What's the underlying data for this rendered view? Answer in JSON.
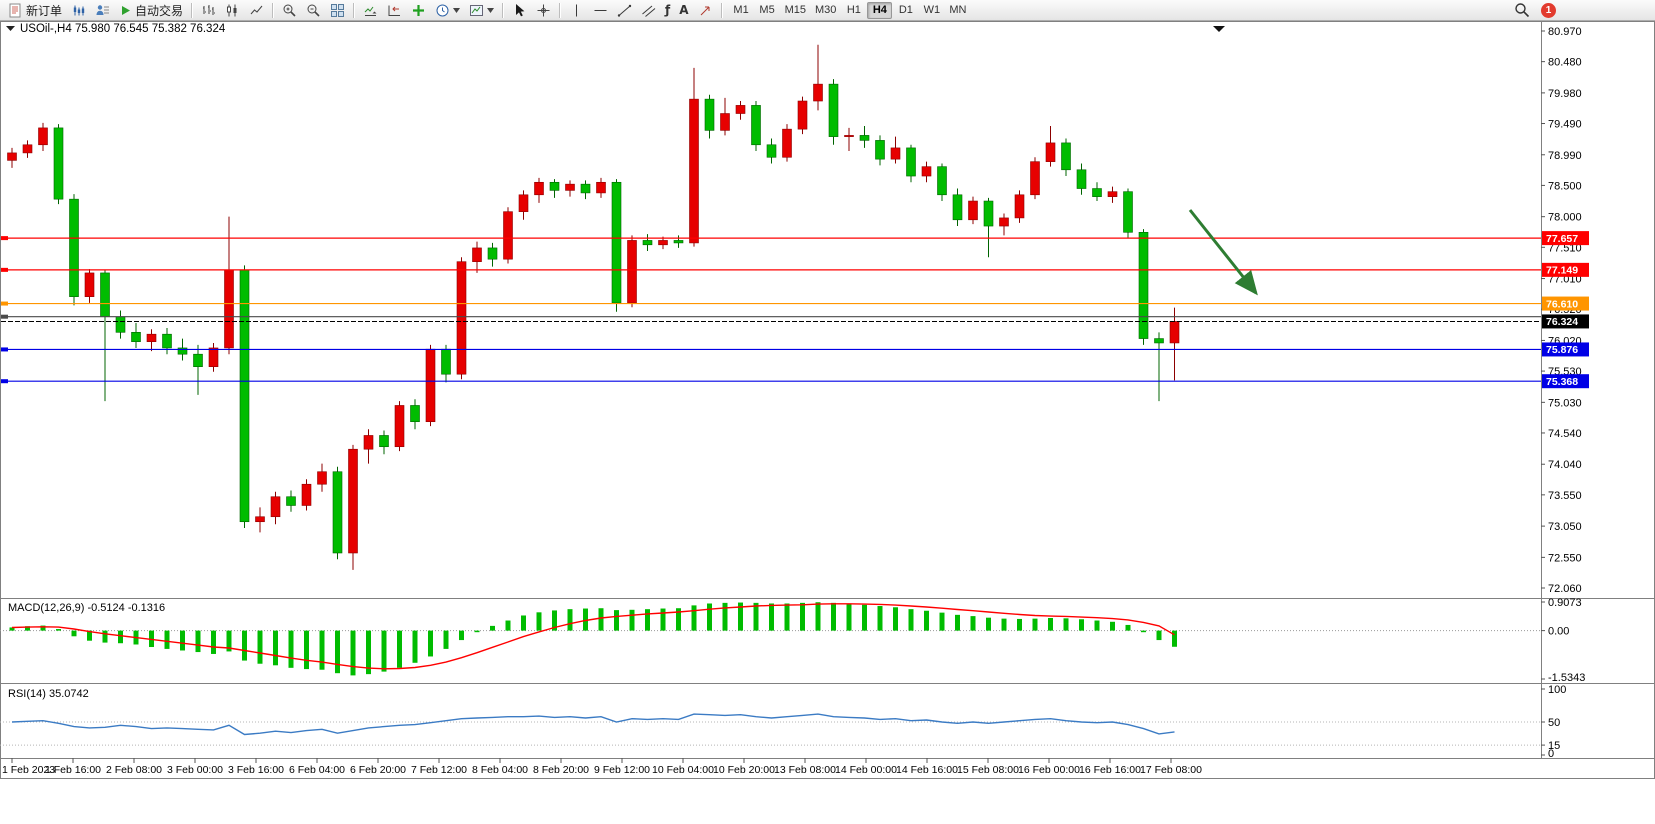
{
  "toolbar": {
    "new_order_label": "新订单",
    "auto_trading_label": "自动交易",
    "fibo_tool_glyph": "ƒ",
    "text_tool_glyph": "A",
    "timeframes": [
      "M1",
      "M5",
      "M15",
      "M30",
      "H1",
      "H4",
      "D1",
      "W1",
      "MN"
    ],
    "active_timeframe": "H4",
    "notification_count": "1"
  },
  "chart": {
    "symbol_period": "USOil-,H4",
    "ohlc": "75.980 76.545 75.382 76.324",
    "price_max": 80.97,
    "price_min": 72.06,
    "price_axis": [
      "80.970",
      "80.480",
      "79.980",
      "79.490",
      "78.990",
      "78.500",
      "78.000",
      "77.510",
      "77.010",
      "76.520",
      "76.020",
      "75.530",
      "75.030",
      "74.540",
      "74.040",
      "73.550",
      "73.050",
      "72.550",
      "72.060"
    ],
    "hlines": [
      {
        "price": 77.657,
        "color": "#ff0000",
        "tag": "77.657"
      },
      {
        "price": 77.149,
        "color": "#ff0000",
        "tag": "77.149"
      },
      {
        "price": 76.61,
        "color": "#ff9500",
        "tag": "76.610"
      },
      {
        "price": 76.4,
        "color": "#4a4a4a",
        "tag": ""
      },
      {
        "price": 75.876,
        "color": "#0000e6",
        "tag": "75.876"
      },
      {
        "price": 75.368,
        "color": "#0000e6",
        "tag": "75.368"
      }
    ],
    "price_line": {
      "price": 76.324,
      "color": "#000000",
      "tag": "76.324"
    },
    "arrow": {
      "color": "#2e7d32"
    },
    "time_axis": [
      "1 Feb 2023",
      "1 Feb 16:00",
      "2 Feb 08:00",
      "3 Feb 00:00",
      "3 Feb 16:00",
      "6 Feb 04:00",
      "6 Feb 20:00",
      "7 Feb 12:00",
      "8 Feb 04:00",
      "8 Feb 20:00",
      "9 Feb 12:00",
      "10 Feb 04:00",
      "10 Feb 20:00",
      "13 Feb 08:00",
      "14 Feb 00:00",
      "14 Feb 16:00",
      "15 Feb 08:00",
      "16 Feb 00:00",
      "16 Feb 16:00",
      "17 Feb 08:00"
    ]
  },
  "indicators": {
    "macd_label": "MACD(12,26,9) -0.5124 -0.1316",
    "macd_axis": [
      "0.9073",
      "0.00",
      "-1.5343"
    ],
    "rsi_label": "RSI(14) 35.0742",
    "rsi_axis": [
      "100",
      "50",
      "15",
      "0"
    ]
  },
  "chart_data": {
    "type": "candlestick",
    "symbol": "USOil-",
    "timeframe": "H4",
    "colors": {
      "candle_up": "#e60000",
      "candle_up_border": "#8c0000",
      "candle_down": "#00bc00",
      "candle_down_border": "#006400",
      "macd_histogram": "#00bc00",
      "macd_signal": "#ff0000",
      "rsi_line": "#3b7bc4"
    },
    "candles": [
      [
        78.9,
        79.1,
        78.78,
        79.02
      ],
      [
        79.02,
        79.22,
        78.94,
        79.15
      ],
      [
        79.15,
        79.5,
        79.05,
        79.42
      ],
      [
        79.42,
        79.48,
        78.2,
        78.28
      ],
      [
        78.28,
        78.36,
        76.58,
        76.72
      ],
      [
        76.72,
        77.16,
        76.62,
        77.1
      ],
      [
        77.1,
        77.14,
        75.05,
        76.4
      ],
      [
        76.4,
        76.5,
        76.05,
        76.15
      ],
      [
        76.15,
        76.3,
        75.9,
        76.0
      ],
      [
        76.0,
        76.2,
        75.85,
        76.12
      ],
      [
        76.12,
        76.22,
        75.8,
        75.9
      ],
      [
        75.9,
        76.05,
        75.7,
        75.8
      ],
      [
        75.8,
        75.95,
        75.15,
        75.6
      ],
      [
        75.6,
        75.98,
        75.52,
        75.9
      ],
      [
        75.9,
        78.0,
        75.8,
        77.15
      ],
      [
        77.15,
        77.22,
        73.02,
        73.12
      ],
      [
        73.12,
        73.35,
        72.95,
        73.2
      ],
      [
        73.2,
        73.6,
        73.08,
        73.52
      ],
      [
        73.52,
        73.62,
        73.28,
        73.38
      ],
      [
        73.38,
        73.8,
        73.3,
        73.72
      ],
      [
        73.72,
        74.05,
        73.6,
        73.92
      ],
      [
        73.92,
        74.0,
        72.52,
        72.62
      ],
      [
        72.62,
        74.35,
        72.35,
        74.28
      ],
      [
        74.28,
        74.6,
        74.05,
        74.5
      ],
      [
        74.5,
        74.58,
        74.2,
        74.32
      ],
      [
        74.32,
        75.05,
        74.25,
        74.98
      ],
      [
        74.98,
        75.08,
        74.6,
        74.72
      ],
      [
        74.72,
        75.95,
        74.65,
        75.88
      ],
      [
        75.88,
        75.95,
        75.35,
        75.48
      ],
      [
        75.48,
        77.35,
        75.4,
        77.28
      ],
      [
        77.28,
        77.6,
        77.1,
        77.5
      ],
      [
        77.5,
        77.58,
        77.2,
        77.32
      ],
      [
        77.32,
        78.15,
        77.25,
        78.08
      ],
      [
        78.08,
        78.42,
        77.95,
        78.35
      ],
      [
        78.35,
        78.62,
        78.22,
        78.55
      ],
      [
        78.55,
        78.6,
        78.3,
        78.42
      ],
      [
        78.42,
        78.58,
        78.32,
        78.52
      ],
      [
        78.52,
        78.58,
        78.28,
        78.38
      ],
      [
        78.38,
        78.62,
        78.3,
        78.55
      ],
      [
        78.55,
        78.6,
        76.48,
        76.62
      ],
      [
        76.62,
        77.7,
        76.55,
        77.62
      ],
      [
        77.62,
        77.72,
        77.45,
        77.55
      ],
      [
        77.55,
        77.68,
        77.48,
        77.62
      ],
      [
        77.62,
        77.7,
        77.5,
        77.58
      ],
      [
        77.58,
        80.38,
        77.52,
        79.88
      ],
      [
        79.88,
        79.95,
        79.25,
        79.38
      ],
      [
        79.38,
        79.9,
        79.3,
        79.65
      ],
      [
        79.65,
        79.85,
        79.55,
        79.78
      ],
      [
        79.78,
        79.85,
        79.05,
        79.15
      ],
      [
        79.15,
        79.25,
        78.85,
        78.95
      ],
      [
        78.95,
        79.48,
        78.88,
        79.4
      ],
      [
        79.4,
        79.92,
        79.32,
        79.85
      ],
      [
        79.85,
        80.75,
        79.7,
        80.12
      ],
      [
        80.12,
        80.2,
        79.15,
        79.28
      ],
      [
        79.28,
        79.42,
        79.05,
        79.3
      ],
      [
        79.3,
        79.45,
        79.1,
        79.22
      ],
      [
        79.22,
        79.3,
        78.82,
        78.92
      ],
      [
        78.92,
        79.28,
        78.85,
        79.1
      ],
      [
        79.1,
        79.15,
        78.55,
        78.65
      ],
      [
        78.65,
        78.88,
        78.55,
        78.8
      ],
      [
        78.8,
        78.85,
        78.25,
        78.35
      ],
      [
        78.35,
        78.45,
        77.85,
        77.95
      ],
      [
        77.95,
        78.32,
        77.88,
        78.25
      ],
      [
        78.25,
        78.3,
        77.35,
        77.85
      ],
      [
        77.85,
        78.05,
        77.7,
        77.98
      ],
      [
        77.98,
        78.42,
        77.9,
        78.35
      ],
      [
        78.35,
        78.95,
        78.28,
        78.88
      ],
      [
        78.88,
        79.45,
        78.8,
        79.18
      ],
      [
        79.18,
        79.25,
        78.65,
        78.75
      ],
      [
        78.75,
        78.85,
        78.35,
        78.45
      ],
      [
        78.45,
        78.55,
        78.25,
        78.32
      ],
      [
        78.32,
        78.48,
        78.22,
        78.4
      ],
      [
        78.4,
        78.45,
        77.65,
        77.75
      ],
      [
        77.75,
        77.8,
        75.95,
        76.05
      ],
      [
        76.05,
        76.15,
        75.05,
        75.98
      ],
      [
        75.98,
        76.545,
        75.382,
        76.324
      ]
    ],
    "macd": {
      "main": [
        0.1,
        0.14,
        0.16,
        0.05,
        -0.18,
        -0.32,
        -0.38,
        -0.4,
        -0.44,
        -0.52,
        -0.58,
        -0.63,
        -0.68,
        -0.74,
        -0.66,
        -0.95,
        -1.05,
        -1.1,
        -1.18,
        -1.22,
        -1.24,
        -1.35,
        -1.42,
        -1.38,
        -1.3,
        -1.18,
        -1.02,
        -0.82,
        -0.58,
        -0.3,
        -0.05,
        0.15,
        0.32,
        0.48,
        0.58,
        0.64,
        0.68,
        0.7,
        0.71,
        0.65,
        0.66,
        0.68,
        0.7,
        0.71,
        0.8,
        0.86,
        0.88,
        0.89,
        0.88,
        0.86,
        0.86,
        0.88,
        0.9,
        0.88,
        0.85,
        0.82,
        0.78,
        0.74,
        0.68,
        0.63,
        0.57,
        0.5,
        0.46,
        0.41,
        0.38,
        0.37,
        0.38,
        0.4,
        0.39,
        0.36,
        0.32,
        0.28,
        0.18,
        -0.05,
        -0.3,
        -0.5124
      ],
      "signal": [
        0.1,
        0.11,
        0.12,
        0.11,
        0.05,
        -0.03,
        -0.1,
        -0.16,
        -0.22,
        -0.28,
        -0.34,
        -0.4,
        -0.46,
        -0.52,
        -0.55,
        -0.63,
        -0.71,
        -0.79,
        -0.87,
        -0.94,
        -1.0,
        -1.07,
        -1.14,
        -1.19,
        -1.21,
        -1.2,
        -1.17,
        -1.1,
        -1.0,
        -0.86,
        -0.7,
        -0.53,
        -0.36,
        -0.19,
        -0.04,
        0.1,
        0.22,
        0.32,
        0.4,
        0.45,
        0.49,
        0.53,
        0.56,
        0.59,
        0.63,
        0.68,
        0.72,
        0.75,
        0.78,
        0.8,
        0.81,
        0.82,
        0.84,
        0.85,
        0.85,
        0.84,
        0.83,
        0.81,
        0.78,
        0.75,
        0.71,
        0.67,
        0.63,
        0.59,
        0.55,
        0.51,
        0.48,
        0.46,
        0.45,
        0.43,
        0.41,
        0.38,
        0.34,
        0.26,
        0.15,
        -0.1316
      ]
    },
    "rsi": [
      50,
      51,
      52,
      48,
      43,
      41,
      42,
      45,
      43,
      40,
      41,
      40,
      39,
      38,
      45,
      31,
      33,
      36,
      34,
      37,
      39,
      33,
      37,
      41,
      43,
      45,
      46,
      49,
      52,
      55,
      56,
      57,
      58,
      58,
      59,
      57,
      58,
      56,
      58,
      50,
      55,
      54,
      55,
      54,
      62,
      61,
      60,
      61,
      58,
      56,
      58,
      60,
      62,
      58,
      57,
      56,
      54,
      55,
      52,
      53,
      50,
      48,
      50,
      48,
      50,
      52,
      54,
      55,
      52,
      50,
      49,
      50,
      46,
      40,
      32,
      35.07
    ]
  }
}
